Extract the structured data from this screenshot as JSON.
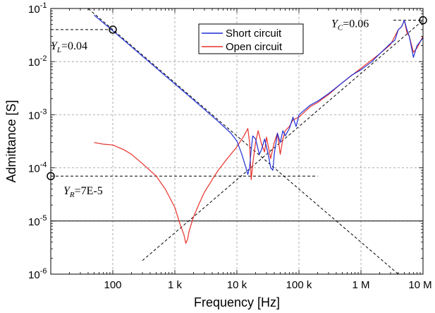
{
  "chart_data": {
    "type": "line",
    "xlabel": "Frequency [Hz]",
    "ylabel": "Admittance [S]",
    "xscale": "log",
    "yscale": "log",
    "xlim": [
      10,
      10000000
    ],
    "ylim": [
      1e-06,
      0.1
    ],
    "grid": true,
    "legend_position": "top-center",
    "x_ticks": [
      {
        "value": 100,
        "label": "100"
      },
      {
        "value": 1000,
        "label": "1 k"
      },
      {
        "value": 10000,
        "label": "10 k"
      },
      {
        "value": 100000,
        "label": "100 k"
      },
      {
        "value": 1000000,
        "label": "1 M"
      },
      {
        "value": 10000000,
        "label": "10 M"
      }
    ],
    "y_ticks": [
      {
        "value": 0.1,
        "mant": "10",
        "exp": "-1"
      },
      {
        "value": 0.01,
        "mant": "10",
        "exp": "-2"
      },
      {
        "value": 0.001,
        "mant": "10",
        "exp": "-3"
      },
      {
        "value": 0.0001,
        "mant": "10",
        "exp": "-4"
      },
      {
        "value": 1e-05,
        "mant": "10",
        "exp": "-5"
      },
      {
        "value": 1e-06,
        "mant": "10",
        "exp": "-6"
      }
    ],
    "series": [
      {
        "name": "Short circuit",
        "color": "#1f2fd6",
        "x": [
          50,
          100,
          200,
          500,
          1000,
          2000,
          5000,
          8000,
          10000,
          12000,
          14000,
          15000,
          16000,
          17000,
          18000,
          20000,
          23000,
          25000,
          28000,
          30000,
          33000,
          35000,
          38000,
          40000,
          45000,
          50000,
          55000,
          60000,
          70000,
          80000,
          90000,
          100000,
          120000,
          150000,
          200000,
          300000,
          500000,
          700000,
          1000000,
          1500000,
          2000000,
          3000000,
          3500000,
          4000000,
          4500000,
          5000000,
          5500000,
          6000000,
          7000000,
          8000000,
          10000000
        ],
        "y": [
          0.075,
          0.038,
          0.019,
          0.0076,
          0.0038,
          0.0019,
          0.00075,
          0.00045,
          0.00032,
          0.00018,
          0.0001,
          7.5e-05,
          0.0001,
          0.00022,
          0.0004,
          0.00035,
          0.00018,
          0.00022,
          0.00035,
          0.00025,
          0.00015,
          0.0001,
          9e-05,
          0.00018,
          0.00045,
          0.0003,
          0.0005,
          0.0004,
          0.00055,
          0.0009,
          0.0006,
          0.001,
          0.0012,
          0.0015,
          0.0018,
          0.0025,
          0.004,
          0.0055,
          0.007,
          0.01,
          0.014,
          0.022,
          0.025,
          0.04,
          0.045,
          0.06,
          0.04,
          0.03,
          0.012,
          0.02,
          0.028
        ]
      },
      {
        "name": "Open circuit",
        "color": "#e8312a",
        "x": [
          50,
          70,
          100,
          150,
          200,
          300,
          500,
          700,
          1000,
          1200,
          1400,
          1500,
          1600,
          1700,
          2000,
          2500,
          3000,
          4000,
          5000,
          7000,
          10000,
          13000,
          15000,
          16000,
          17000,
          18000,
          20000,
          22000,
          25000,
          28000,
          30000,
          35000,
          40000,
          45000,
          50000,
          55000,
          60000,
          70000,
          80000,
          100000,
          150000,
          200000,
          300000,
          500000,
          1000000,
          2000000,
          3000000,
          4000000,
          4500000,
          5000000,
          5500000,
          6000000,
          7000000,
          8000000,
          10000000
        ],
        "y": [
          0.0003,
          0.00028,
          0.00027,
          0.00022,
          0.00018,
          0.00012,
          7e-05,
          4e-05,
          1.8e-05,
          9e-06,
          5.5e-06,
          3.8e-06,
          4.5e-06,
          6.5e-06,
          1.2e-05,
          2.2e-05,
          3.5e-05,
          6e-05,
          9e-05,
          0.00015,
          0.00025,
          0.0004,
          0.00055,
          0.0003,
          6e-05,
          0.00012,
          0.0003,
          0.0005,
          0.00028,
          0.0002,
          0.00038,
          0.00015,
          0.0003,
          0.00045,
          0.00018,
          0.00035,
          0.0005,
          0.0006,
          0.0008,
          0.0009,
          0.0014,
          0.0017,
          0.0024,
          0.004,
          0.0075,
          0.014,
          0.021,
          0.04,
          0.045,
          0.06,
          0.035,
          0.03,
          0.015,
          0.018,
          0.03
        ]
      }
    ],
    "reference_lines": [
      {
        "kind": "inductive",
        "slope": -1,
        "x": [
          10,
          8000000
        ],
        "y": [
          0.4,
          5e-07
        ]
      },
      {
        "kind": "capacitive",
        "slope": 1,
        "x": [
          300,
          10000000
        ],
        "y": [
          1.8e-06,
          0.06
        ]
      }
    ],
    "annotations": [
      {
        "id": "yl",
        "label": "Y",
        "sub": "L",
        "value_text": "=0.04",
        "x": 100,
        "y": 0.04
      },
      {
        "id": "yr",
        "label": "Y",
        "sub": "R",
        "value_text": "=7E-5",
        "x": 10,
        "y": 7e-05
      },
      {
        "id": "yc",
        "label": "Y",
        "sub": "C",
        "value_text": "=0.06",
        "x": 10000000,
        "y": 0.06
      }
    ],
    "horizontal_line": {
      "y": 1e-05
    }
  }
}
